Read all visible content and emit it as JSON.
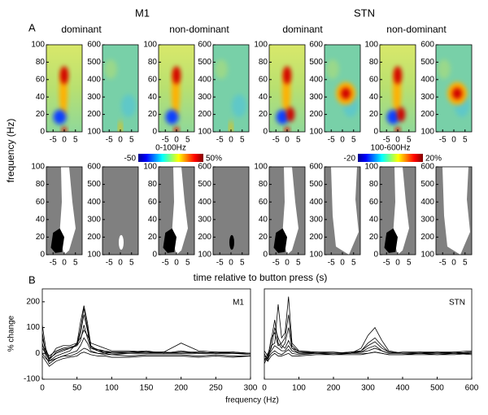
{
  "header": {
    "panel_a": "A",
    "panel_b": "B",
    "m1": "M1",
    "stn": "STN"
  },
  "columns": [
    "dominant",
    "non-dominant",
    "dominant",
    "non-dominant"
  ],
  "heatmap_axes": {
    "low_yticks": [
      0,
      20,
      40,
      60,
      80,
      100
    ],
    "high_yticks": [
      100,
      200,
      300,
      400,
      500,
      600
    ],
    "xlim": [
      -8,
      8
    ],
    "xticks": [
      -5,
      0,
      5
    ],
    "ylabel": "frequency (Hz)",
    "xlabel": "time relative to button press (s)"
  },
  "colorbars": [
    {
      "label": "0-100Hz",
      "min": -50,
      "max": {
        "value": 50,
        "label": "50%"
      }
    },
    {
      "label": "100-600Hz",
      "min": -20,
      "max": {
        "value": 20,
        "label": "20%"
      }
    }
  ],
  "chart_data": [
    {
      "type": "line",
      "annotation": "M1",
      "ylabel": "% change",
      "xlabel": "frequency (Hz)",
      "xlim": [
        0,
        300
      ],
      "ylim": [
        -100,
        250
      ],
      "xticks": [
        0,
        50,
        100,
        150,
        200,
        250,
        300
      ],
      "yticks": [
        -100,
        0,
        100,
        200
      ],
      "x": [
        0,
        5,
        10,
        20,
        30,
        40,
        50,
        55,
        60,
        65,
        70,
        80,
        90,
        100,
        125,
        150,
        175,
        200,
        225,
        250,
        275,
        300
      ],
      "series": [
        {
          "color": "#000000",
          "values": [
            60,
            10,
            -30,
            -10,
            0,
            10,
            40,
            120,
            185,
            120,
            30,
            10,
            5,
            5,
            0,
            0,
            5,
            0,
            5,
            0,
            0,
            0
          ]
        },
        {
          "color": "#000000",
          "values": [
            110,
            20,
            -20,
            0,
            10,
            20,
            30,
            80,
            150,
            90,
            20,
            10,
            0,
            5,
            5,
            10,
            0,
            10,
            0,
            5,
            0,
            0
          ]
        },
        {
          "color": "#000000",
          "values": [
            40,
            -10,
            -40,
            -20,
            -10,
            0,
            10,
            30,
            60,
            40,
            10,
            0,
            0,
            -5,
            0,
            0,
            0,
            0,
            0,
            0,
            0,
            -5
          ]
        },
        {
          "color": "#000000",
          "values": [
            20,
            0,
            -20,
            20,
            30,
            30,
            40,
            60,
            90,
            70,
            40,
            30,
            20,
            10,
            10,
            5,
            5,
            40,
            10,
            5,
            5,
            0
          ]
        },
        {
          "color": "#000000",
          "values": [
            0,
            -20,
            -30,
            -20,
            -10,
            -10,
            0,
            10,
            20,
            15,
            5,
            0,
            -5,
            -5,
            -10,
            -5,
            -5,
            -5,
            -10,
            -5,
            -10,
            -10
          ]
        },
        {
          "color": "#000000",
          "values": [
            -10,
            -30,
            -50,
            -30,
            -20,
            -15,
            -10,
            0,
            5,
            0,
            -5,
            -10,
            -10,
            -15,
            -15,
            -10,
            -10,
            -10,
            -15,
            -10,
            -15,
            -10
          ]
        },
        {
          "color": "#000000",
          "values": [
            30,
            10,
            -10,
            10,
            20,
            25,
            30,
            50,
            110,
            60,
            20,
            15,
            10,
            5,
            5,
            5,
            0,
            5,
            5,
            0,
            5,
            0
          ]
        },
        {
          "color": "#000000",
          "values": [
            80,
            0,
            -25,
            5,
            15,
            20,
            35,
            90,
            175,
            100,
            25,
            15,
            5,
            0,
            0,
            5,
            5,
            0,
            0,
            0,
            0,
            0
          ]
        }
      ]
    },
    {
      "type": "line",
      "annotation": "STN",
      "xlim": [
        0,
        600
      ],
      "ylim": [
        -100,
        250
      ],
      "xticks": [
        0,
        100,
        200,
        300,
        400,
        500,
        600
      ],
      "x": [
        0,
        10,
        20,
        30,
        40,
        50,
        60,
        70,
        80,
        100,
        150,
        200,
        250,
        280,
        300,
        320,
        340,
        360,
        400,
        450,
        500,
        550,
        600
      ],
      "series": [
        {
          "color": "#000000",
          "values": [
            0,
            -30,
            30,
            40,
            190,
            60,
            80,
            220,
            40,
            10,
            0,
            0,
            5,
            10,
            40,
            60,
            30,
            5,
            0,
            0,
            5,
            0,
            5
          ]
        },
        {
          "color": "#000000",
          "values": [
            -20,
            -20,
            60,
            80,
            30,
            40,
            60,
            150,
            30,
            5,
            0,
            0,
            0,
            20,
            70,
            100,
            50,
            10,
            0,
            0,
            0,
            5,
            0
          ]
        },
        {
          "color": "#000000",
          "values": [
            -30,
            0,
            20,
            100,
            60,
            30,
            20,
            50,
            20,
            10,
            5,
            5,
            0,
            10,
            30,
            45,
            20,
            5,
            0,
            5,
            0,
            0,
            5
          ]
        },
        {
          "color": "#000000",
          "values": [
            -40,
            -10,
            10,
            30,
            20,
            10,
            10,
            30,
            10,
            0,
            0,
            0,
            0,
            5,
            10,
            20,
            10,
            0,
            0,
            0,
            0,
            0,
            0
          ]
        },
        {
          "color": "#000000",
          "values": [
            -10,
            -20,
            0,
            10,
            0,
            -5,
            5,
            15,
            0,
            -5,
            0,
            -5,
            0,
            0,
            0,
            5,
            0,
            -5,
            -5,
            0,
            -5,
            -5,
            0
          ]
        },
        {
          "color": "#000000",
          "values": [
            10,
            -10,
            50,
            130,
            40,
            20,
            40,
            100,
            20,
            0,
            5,
            0,
            5,
            5,
            20,
            30,
            10,
            0,
            5,
            5,
            5,
            5,
            10
          ]
        },
        {
          "color": "#000000",
          "values": [
            -20,
            -30,
            -10,
            0,
            -10,
            -10,
            -5,
            0,
            -10,
            -10,
            -5,
            -5,
            -5,
            -5,
            0,
            5,
            0,
            -5,
            -5,
            -5,
            -5,
            0,
            -5
          ]
        }
      ]
    }
  ]
}
